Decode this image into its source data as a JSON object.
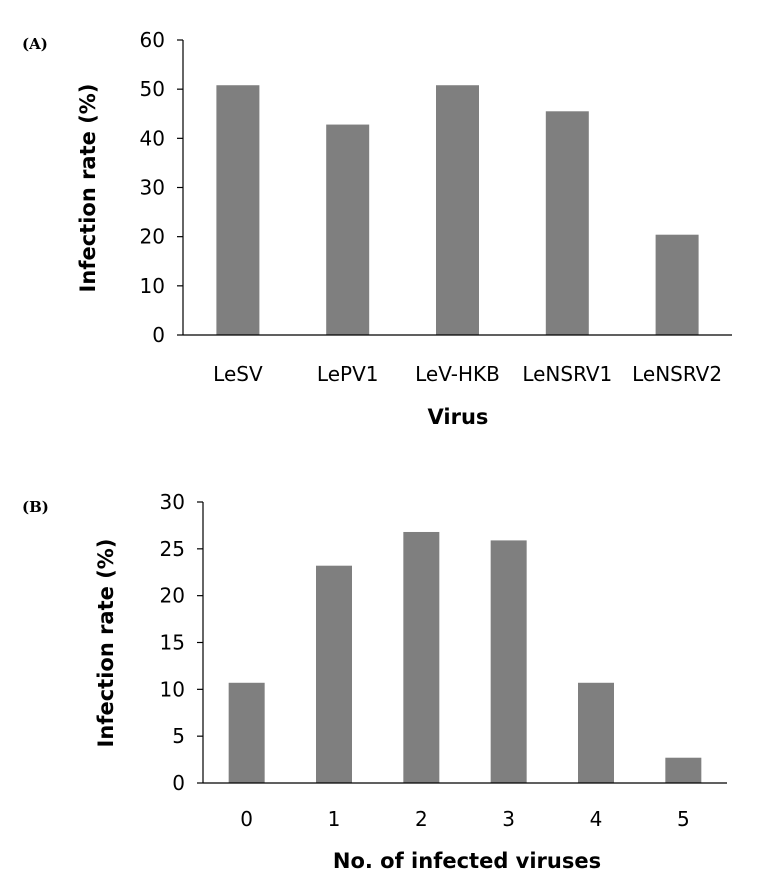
{
  "chart_data": [
    {
      "panel": "(A)",
      "type": "bar",
      "categories": [
        "LeSV",
        "LePV1",
        "LeV-HKB",
        "LeNSRV1",
        "LeNSRV2"
      ],
      "values": [
        50.8,
        42.8,
        50.8,
        45.5,
        20.4
      ],
      "xlabel": "Virus",
      "ylabel": "Infection rate (%)",
      "ylim": [
        0,
        60
      ],
      "yticks": [
        0,
        10,
        20,
        30,
        40,
        50,
        60
      ],
      "bar_color": "#7f7f7f",
      "grid": false,
      "legend": "none"
    },
    {
      "panel": "(B)",
      "type": "bar",
      "categories": [
        "0",
        "1",
        "2",
        "3",
        "4",
        "5"
      ],
      "values": [
        10.7,
        23.2,
        26.8,
        25.9,
        10.7,
        2.7
      ],
      "xlabel": "No. of infected viruses",
      "ylabel": "Infection rate (%)",
      "ylim": [
        0,
        30
      ],
      "yticks": [
        0,
        5,
        10,
        15,
        20,
        25,
        30
      ],
      "bar_color": "#7f7f7f",
      "grid": false,
      "legend": "none"
    }
  ]
}
